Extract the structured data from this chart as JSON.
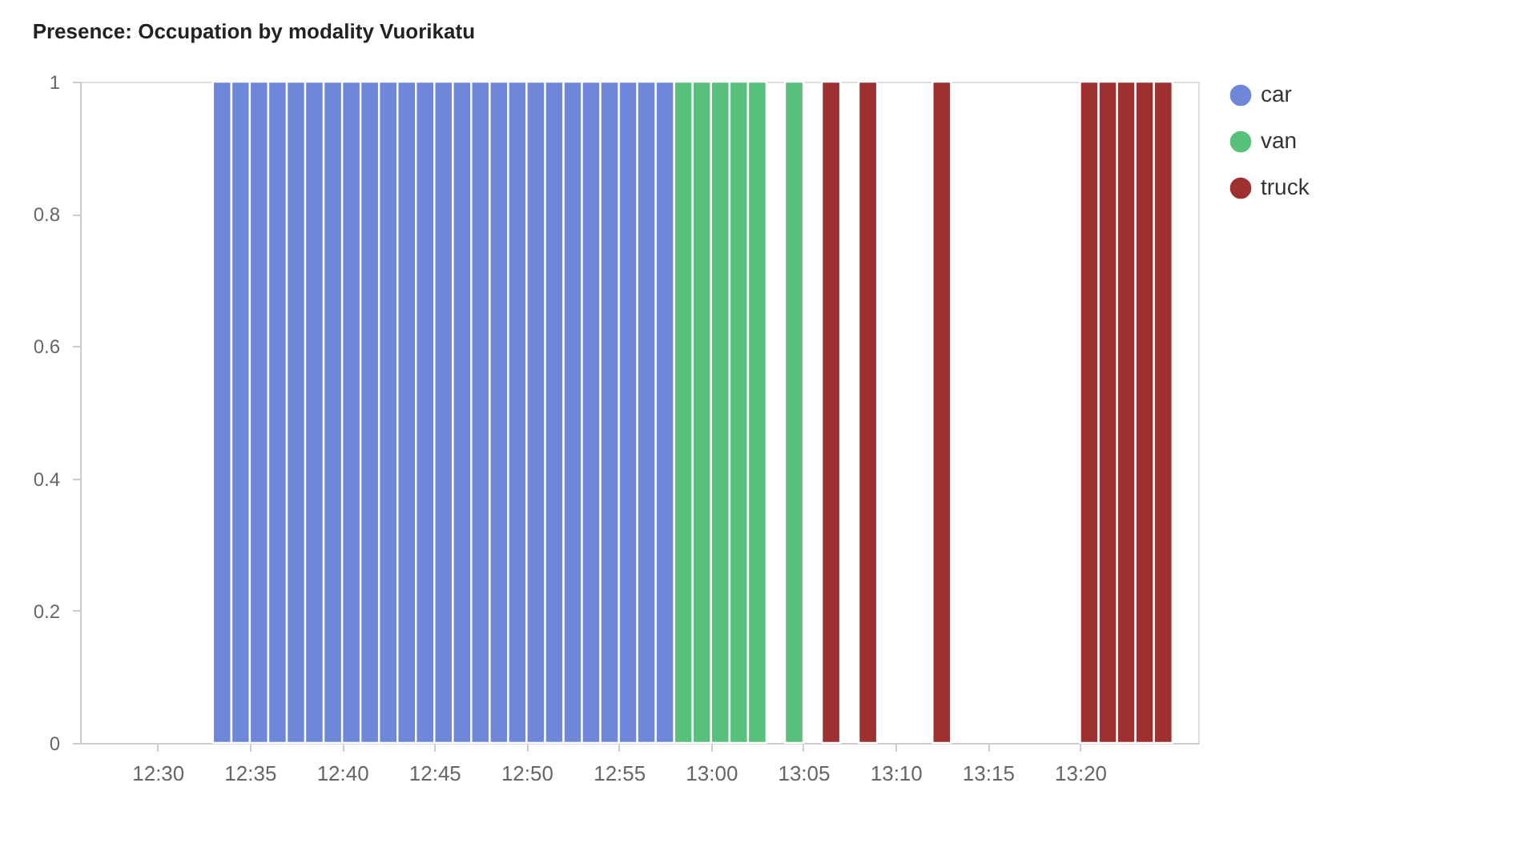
{
  "chart_data": {
    "type": "bar",
    "title": "Presence: Occupation by modality Vuorikatu",
    "xlim": [
      12.43,
      13.44
    ],
    "xticks": [
      {
        "value": 12.5,
        "label": "12:30"
      },
      {
        "value": 12.5833,
        "label": "12:35"
      },
      {
        "value": 12.6667,
        "label": "12:40"
      },
      {
        "value": 12.75,
        "label": "12:45"
      },
      {
        "value": 12.8333,
        "label": "12:50"
      },
      {
        "value": 12.9167,
        "label": "12:55"
      },
      {
        "value": 13.0,
        "label": "13:00"
      },
      {
        "value": 13.0833,
        "label": "13:05"
      },
      {
        "value": 13.1667,
        "label": "13:10"
      },
      {
        "value": 13.25,
        "label": "13:15"
      },
      {
        "value": 13.3333,
        "label": "13:20"
      }
    ],
    "ylim": [
      0,
      1
    ],
    "yticks": [
      0,
      0.2,
      0.4,
      0.6,
      0.8,
      1
    ],
    "grid": false,
    "legend": "top right",
    "series": [
      {
        "name": "car",
        "color": "#6f87d8",
        "x": [
          12.55,
          12.5667,
          12.5833,
          12.6,
          12.6167,
          12.6333,
          12.65,
          12.6667,
          12.6833,
          12.7,
          12.7167,
          12.7333,
          12.75,
          12.7667,
          12.7833,
          12.8,
          12.8167,
          12.8333,
          12.85,
          12.8667,
          12.8833,
          12.9,
          12.9167,
          12.9333,
          12.95
        ],
        "values": [
          1,
          1,
          1,
          1,
          1,
          1,
          1,
          1,
          1,
          1,
          1,
          1,
          1,
          1,
          1,
          1,
          1,
          1,
          1,
          1,
          1,
          1,
          1,
          1,
          1
        ]
      },
      {
        "name": "van",
        "color": "#57c17b",
        "x": [
          12.9667,
          12.9833,
          13.0,
          13.0167,
          13.0333,
          13.0667
        ],
        "values": [
          1,
          1,
          1,
          1,
          1,
          1
        ]
      },
      {
        "name": "truck",
        "color": "#9e3030",
        "x": [
          13.1,
          13.1333,
          13.2,
          13.3333,
          13.35,
          13.3667,
          13.3833,
          13.4
        ],
        "values": [
          1,
          1,
          1,
          1,
          1,
          1,
          1,
          1
        ]
      }
    ]
  }
}
